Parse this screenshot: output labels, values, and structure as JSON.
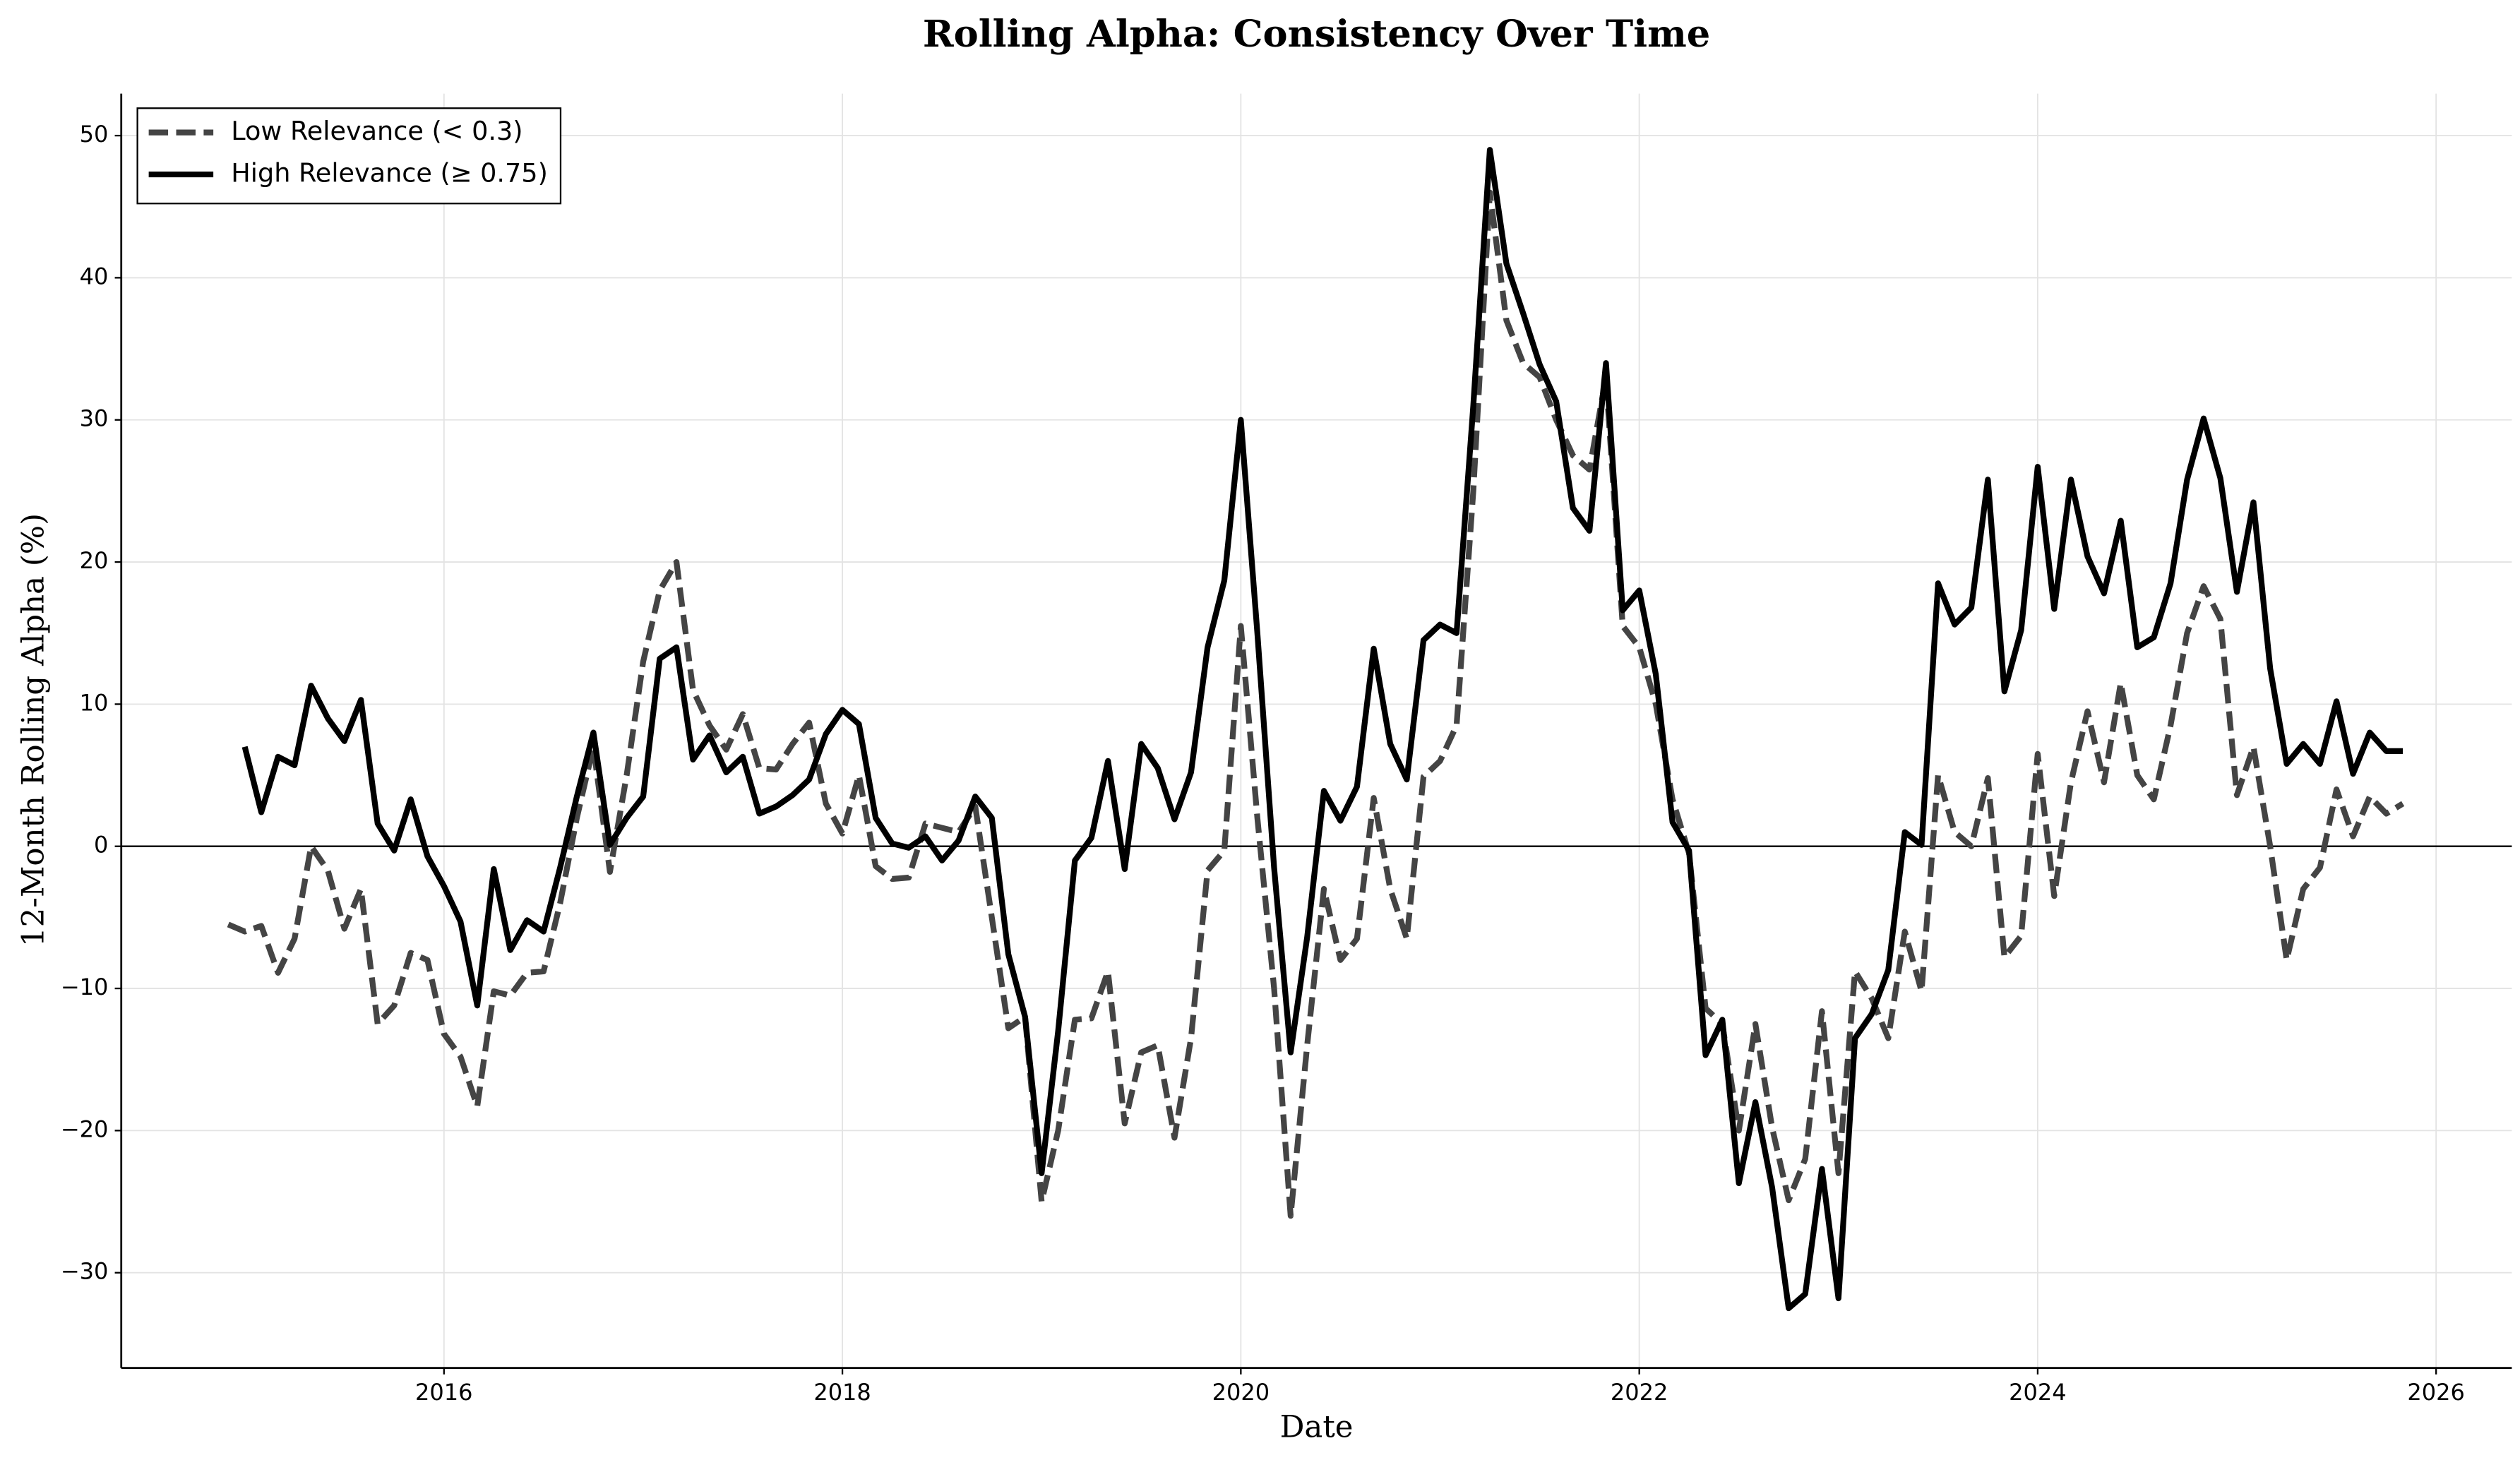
{
  "chart_data": {
    "type": "line",
    "title": "Rolling Alpha: Consistency Over Time",
    "xlabel": "Date",
    "ylabel": "12-Month Rolling Alpha (%)",
    "x": [
      2014.917,
      2015,
      2015.083,
      2015.167,
      2015.25,
      2015.333,
      2015.417,
      2015.5,
      2015.583,
      2015.667,
      2015.75,
      2015.833,
      2015.917,
      2016,
      2016.083,
      2016.167,
      2016.25,
      2016.333,
      2016.417,
      2016.5,
      2016.583,
      2016.667,
      2016.75,
      2016.833,
      2016.917,
      2017,
      2017.083,
      2017.167,
      2017.25,
      2017.333,
      2017.417,
      2017.5,
      2017.583,
      2017.667,
      2017.75,
      2017.833,
      2017.917,
      2018,
      2018.083,
      2018.167,
      2018.25,
      2018.333,
      2018.417,
      2018.5,
      2018.583,
      2018.667,
      2018.75,
      2018.833,
      2018.917,
      2019,
      2019.083,
      2019.167,
      2019.25,
      2019.333,
      2019.417,
      2019.5,
      2019.583,
      2019.667,
      2019.75,
      2019.833,
      2019.917,
      2020,
      2020.083,
      2020.167,
      2020.25,
      2020.333,
      2020.417,
      2020.5,
      2020.583,
      2020.667,
      2020.75,
      2020.833,
      2020.917,
      2021,
      2021.083,
      2021.167,
      2021.25,
      2021.333,
      2021.417,
      2021.5,
      2021.583,
      2021.667,
      2021.75,
      2021.833,
      2021.917,
      2022,
      2022.083,
      2022.167,
      2022.25,
      2022.333,
      2022.417,
      2022.5,
      2022.583,
      2022.667,
      2022.75,
      2022.833,
      2022.917,
      2023,
      2023.083,
      2023.167,
      2023.25,
      2023.333,
      2023.417,
      2023.5,
      2023.583,
      2023.667,
      2023.75,
      2023.833,
      2023.917,
      2024,
      2024.083,
      2024.167,
      2024.25,
      2024.333,
      2024.417,
      2024.5,
      2024.583,
      2024.667,
      2024.75,
      2024.833,
      2024.917,
      2025,
      2025.083,
      2025.167,
      2025.25,
      2025.333,
      2025.417,
      2025.5,
      2025.583,
      2025.667,
      2025.75,
      2025.833
    ],
    "series": [
      {
        "name": "Low Relevance (< 0.3)",
        "color": "#444444",
        "dash": true,
        "values": [
          -5.5,
          -6,
          -5.6,
          -8.9,
          -6.5,
          0,
          -1.7,
          -5.8,
          -3,
          -12.5,
          -11.2,
          -7.5,
          -8,
          -13.2,
          -14.8,
          -18.3,
          -10.2,
          -10.5,
          -8.9,
          -8.8,
          -4,
          2,
          7,
          -1.8,
          5,
          13,
          18,
          20,
          11,
          8.5,
          6.8,
          9.3,
          5.5,
          5.4,
          7.2,
          8.7,
          3,
          0.9,
          5,
          -1.4,
          -2.3,
          -2.2,
          1.6,
          1.3,
          1,
          2.8,
          -5,
          -12.8,
          -12,
          -25,
          -20,
          -12.2,
          -12.1,
          -8.8,
          -19.5,
          -14.5,
          -14,
          -20.5,
          -13.5,
          -1.7,
          -0.3,
          15.5,
          2,
          -10,
          -26,
          -14,
          -3,
          -8,
          -6.5,
          3.4,
          -3,
          -6.5,
          4.9,
          6,
          8.5,
          25,
          46,
          37,
          34,
          33,
          30,
          27.5,
          26.5,
          33,
          15.5,
          14,
          10,
          3.3,
          -0.5,
          -11.4,
          -12.5,
          -20,
          -12.5,
          -19.8,
          -24.9,
          -22,
          -11.6,
          -23,
          -8.8,
          -10.7,
          -13.5,
          -6,
          -10.2,
          5,
          1,
          0,
          4.8,
          -7.8,
          -6.3,
          6.5,
          -3.5,
          4.5,
          9.5,
          4.5,
          11.5,
          5,
          3.3,
          8.5,
          15,
          18.3,
          16,
          3.6,
          7,
          0,
          -8,
          -3,
          -1.5,
          4,
          0.7,
          3.5,
          2.3,
          3
        ]
      },
      {
        "name": "High Relevance (≥ 0.75)",
        "color": "#000000",
        "dash": false,
        "values": [
          null,
          7,
          2.4,
          6.3,
          5.7,
          11.3,
          9,
          7.4,
          10.3,
          1.6,
          -0.3,
          3.3,
          -0.7,
          -2.8,
          -5.3,
          -11.2,
          -1.6,
          -7.3,
          -5.2,
          -6,
          -1.5,
          3.5,
          8,
          0.1,
          2,
          3.5,
          13.2,
          14,
          6.1,
          7.8,
          5.2,
          6.3,
          2.3,
          2.8,
          3.6,
          4.7,
          7.9,
          9.6,
          8.6,
          2,
          0.2,
          -0.1,
          0.7,
          -1,
          0.4,
          3.5,
          2,
          -7.6,
          -12,
          -23,
          -13,
          -1,
          0.6,
          6,
          -1.6,
          7.2,
          5.5,
          1.9,
          5.2,
          14,
          18.7,
          30,
          15,
          -1.5,
          -14.5,
          -6.4,
          3.9,
          1.8,
          4.2,
          13.9,
          7.2,
          4.7,
          14.5,
          15.6,
          15,
          31,
          49,
          41,
          37.5,
          33.9,
          31.3,
          23.8,
          22.2,
          34,
          16.6,
          18,
          12.1,
          1.7,
          -0.3,
          -14.7,
          -12.2,
          -23.7,
          -18,
          -24,
          -32.5,
          -31.5,
          -22.7,
          -31.8,
          -13.5,
          -11.8,
          -8.7,
          1,
          0.1,
          18.5,
          15.6,
          16.8,
          25.8,
          10.9,
          15.2,
          26.7,
          16.7,
          25.8,
          20.4,
          17.8,
          22.9,
          14,
          14.7,
          18.5,
          25.8,
          30.1,
          25.9,
          17.9,
          24.2,
          12.5,
          5.8,
          7.2,
          5.8,
          10.2,
          5.1,
          8,
          6.7,
          6.7
        ]
      }
    ],
    "xlim": [
      2014.38,
      2026.38
    ],
    "xticks": [
      2016,
      2018,
      2020,
      2022,
      2024,
      2026
    ],
    "ylim": [
      -36.7,
      52.95
    ],
    "yticks": [
      {
        "value": -30,
        "label": "−30"
      },
      {
        "value": -20,
        "label": "−20"
      },
      {
        "value": -10,
        "label": "−10"
      },
      0,
      10,
      20,
      30,
      40,
      50
    ],
    "zero_line": 0,
    "grid": true,
    "legend": "upper left"
  }
}
